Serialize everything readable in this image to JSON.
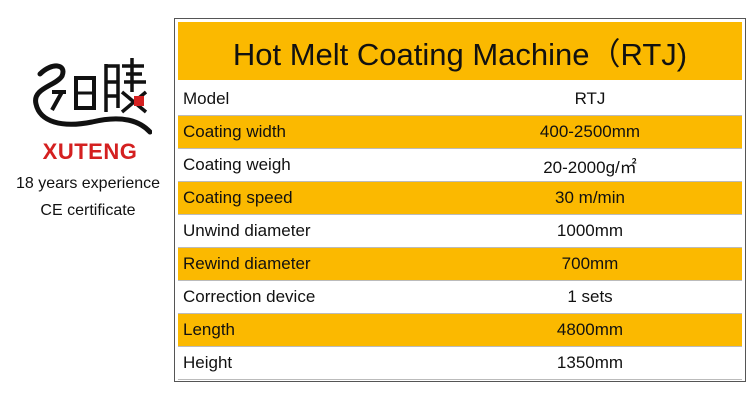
{
  "brand": {
    "name": "XUTENG",
    "taglines": [
      "18 years experience",
      "CE certificate"
    ]
  },
  "table": {
    "title": "Hot Melt Coating Machine（RTJ)",
    "rows": [
      [
        "Model",
        "RTJ"
      ],
      [
        "Coating width",
        "400-2500mm"
      ],
      [
        "Coating weigh",
        "20-2000g/㎡"
      ],
      [
        "Coating speed",
        "30 m/min"
      ],
      [
        "Unwind diameter",
        "1000mm"
      ],
      [
        "Rewind diameter",
        "700mm"
      ],
      [
        "Correction device",
        "1 sets"
      ],
      [
        "Length",
        "4800mm"
      ],
      [
        "Height",
        "1350mm"
      ]
    ]
  }
}
